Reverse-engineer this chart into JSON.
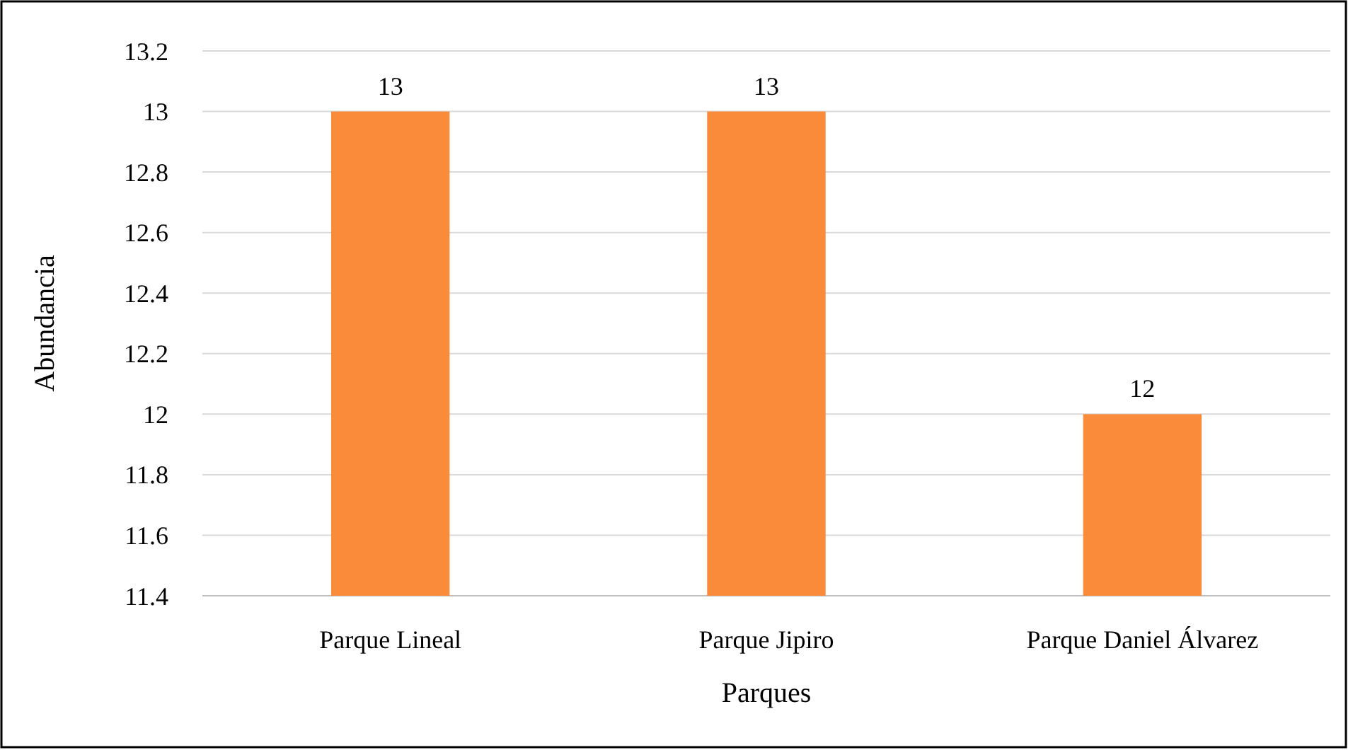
{
  "chart_data": {
    "type": "bar",
    "xlabel": "Parques",
    "ylabel": "Abundancia",
    "categories": [
      "Parque Lineal",
      "Parque Jipiro",
      "Parque Daniel Álvarez"
    ],
    "values": [
      13,
      13,
      12
    ],
    "color": "#f98b3a",
    "ylim": [
      11.4,
      13.2
    ],
    "yticks": [
      11.4,
      11.6,
      11.8,
      12,
      12.2,
      12.4,
      12.6,
      12.8,
      13,
      13.2
    ],
    "grid": "y",
    "data_labels": true
  }
}
